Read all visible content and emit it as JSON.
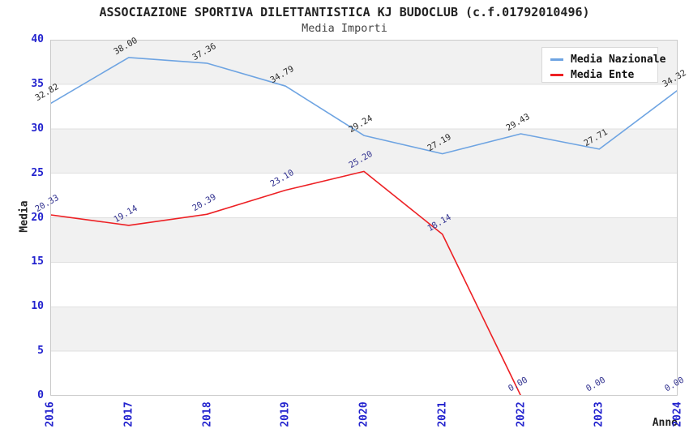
{
  "chart_data": {
    "type": "line",
    "title": "ASSOCIAZIONE SPORTIVA DILETTANTISTICA KJ BUDOCLUB (c.f.01792010496)",
    "subtitle": "Media Importi",
    "xlabel": "Anno",
    "ylabel": "Media",
    "categories": [
      "2016",
      "2017",
      "2018",
      "2019",
      "2020",
      "2021",
      "2022",
      "2023",
      "2024"
    ],
    "series": [
      {
        "name": "Media Nazionale",
        "color": "#6EA4E2",
        "label_color": "#2b2b2b",
        "values": [
          32.82,
          38.0,
          37.36,
          34.79,
          29.24,
          27.19,
          29.43,
          27.71,
          34.32
        ]
      },
      {
        "name": "Media Ente",
        "color": "#ED2024",
        "label_color": "#31318F",
        "values": [
          20.33,
          19.14,
          20.39,
          23.1,
          25.2,
          18.14,
          0.0,
          0.0,
          0.0
        ]
      }
    ],
    "ylim": [
      0,
      40
    ],
    "ytick_step": 5,
    "grid": true,
    "legend_position": "top-right",
    "tick_color": "#2323CE",
    "band_colors": [
      "#FFFFFF",
      "#F1F1F1"
    ],
    "grid_color": "#E0E0E0",
    "border_color": "#C9C9C9"
  }
}
